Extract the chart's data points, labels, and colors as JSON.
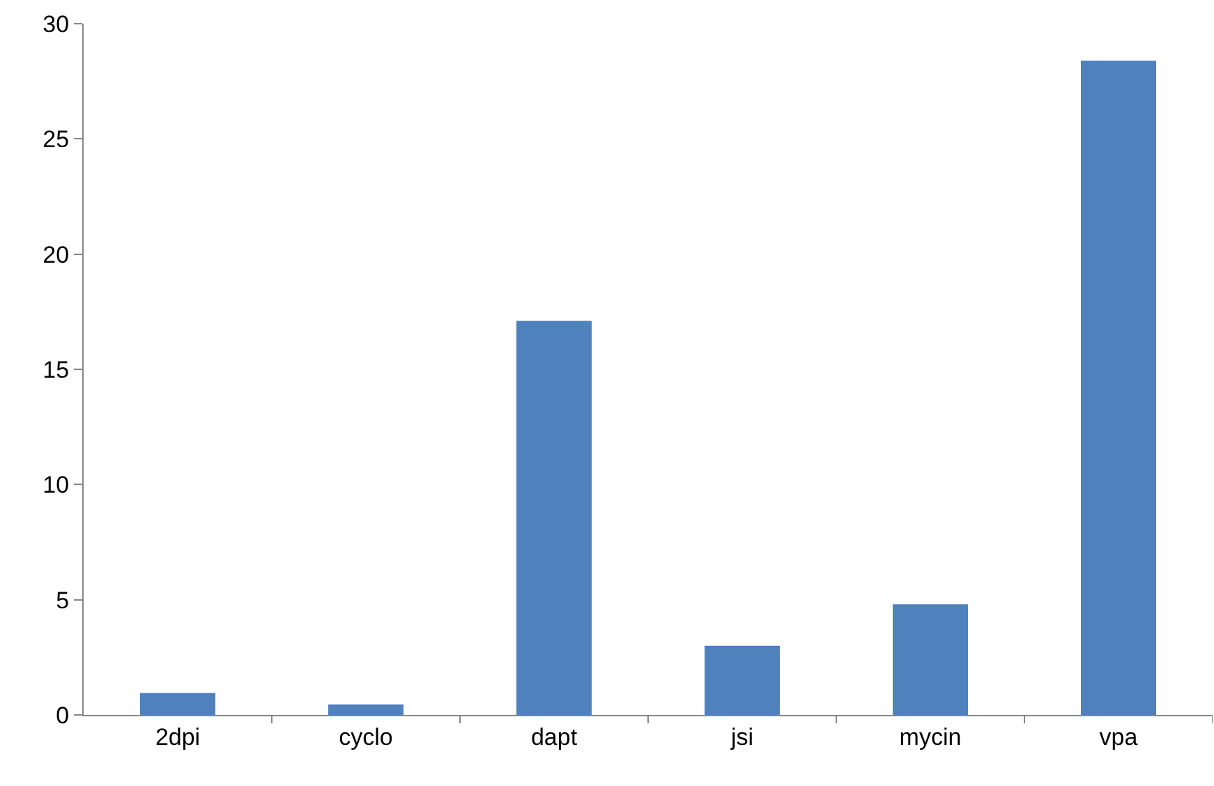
{
  "chart_data": {
    "type": "bar",
    "categories": [
      "2dpi",
      "cyclo",
      "dapt",
      "jsi",
      "mycin",
      "vpa"
    ],
    "values": [
      0.95,
      0.45,
      17.1,
      3.0,
      4.8,
      28.4
    ],
    "color": "#4f81bd",
    "ylim": [
      0,
      30
    ],
    "yticks": [
      0,
      5,
      10,
      15,
      20,
      25,
      30
    ],
    "grid": false
  }
}
